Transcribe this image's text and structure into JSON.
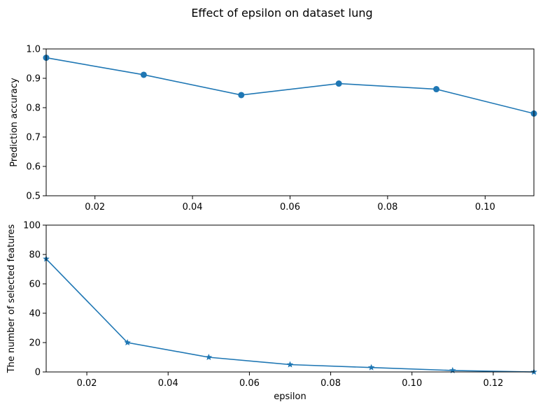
{
  "title": "Effect of epsilon on dataset lung",
  "colors": {
    "line": "#1f77b4",
    "axis": "#000000",
    "background": "#ffffff"
  },
  "chart_data": [
    {
      "type": "line",
      "marker": "circle",
      "title": "",
      "xlabel": "",
      "ylabel": "Prediction accuracy",
      "xlim": [
        0.01,
        0.11
      ],
      "ylim": [
        0.5,
        1.0
      ],
      "xticks": [
        0.02,
        0.04,
        0.06,
        0.08,
        0.1
      ],
      "xtick_labels": [
        "0.02",
        "0.04",
        "0.06",
        "0.08",
        "0.10"
      ],
      "yticks": [
        0.5,
        0.6,
        0.7,
        0.8,
        0.9,
        1.0
      ],
      "ytick_labels": [
        "0.5",
        "0.6",
        "0.7",
        "0.8",
        "0.9",
        "1.0"
      ],
      "grid": false,
      "x": [
        0.01,
        0.03,
        0.05,
        0.07,
        0.09,
        0.11
      ],
      "y": [
        0.97,
        0.912,
        0.843,
        0.882,
        0.863,
        0.78
      ]
    },
    {
      "type": "line",
      "marker": "star",
      "title": "",
      "xlabel": "epsilon",
      "ylabel": "The number of selected features",
      "xlim": [
        0.01,
        0.13
      ],
      "ylim": [
        0,
        100
      ],
      "xticks": [
        0.02,
        0.04,
        0.06,
        0.08,
        0.1,
        0.12
      ],
      "xtick_labels": [
        "0.02",
        "0.04",
        "0.06",
        "0.08",
        "0.10",
        "0.12"
      ],
      "yticks": [
        0,
        20,
        40,
        60,
        80,
        100
      ],
      "ytick_labels": [
        "0",
        "20",
        "40",
        "60",
        "80",
        "100"
      ],
      "grid": false,
      "x": [
        0.01,
        0.03,
        0.05,
        0.07,
        0.09,
        0.11,
        0.13
      ],
      "y": [
        77,
        20,
        10,
        5,
        3,
        1,
        0
      ]
    }
  ]
}
